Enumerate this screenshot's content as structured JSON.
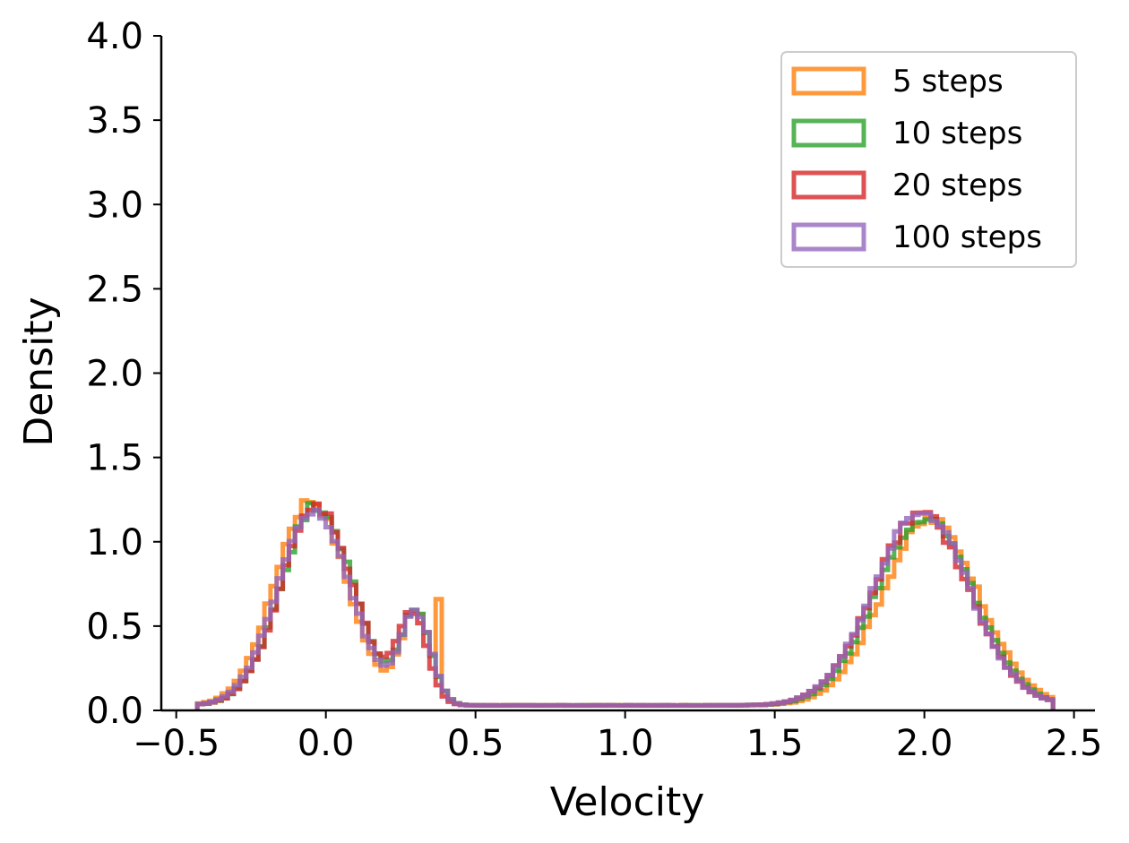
{
  "chart_data": {
    "type": "line",
    "subtype": "step-histogram",
    "xlabel": "Velocity",
    "ylabel": "Density",
    "xlim": [
      -0.55,
      2.57
    ],
    "ylim": [
      0,
      4.0
    ],
    "xticks": [
      -0.5,
      0.0,
      0.5,
      1.0,
      1.5,
      2.0,
      2.5
    ],
    "xtick_labels": [
      "−0.5",
      "0.0",
      "0.5",
      "1.0",
      "1.5",
      "2.0",
      "2.5"
    ],
    "yticks": [
      0.0,
      0.5,
      1.0,
      1.5,
      2.0,
      2.5,
      3.0,
      3.5,
      4.0
    ],
    "ytick_labels": [
      "0.0",
      "0.5",
      "1.0",
      "1.5",
      "2.0",
      "2.5",
      "3.0",
      "3.5",
      "4.0"
    ],
    "legend_position": "top-right",
    "grid": false,
    "bin_range": [
      -0.43,
      2.43
    ],
    "series": [
      {
        "name": "5 steps",
        "color": "#ff7f0e",
        "peaks": [
          {
            "center": -0.05,
            "height": 1.22,
            "width": 0.12
          },
          {
            "center": 0.3,
            "height": 0.55,
            "width": 0.05
          },
          {
            "center": 2.02,
            "height": 1.1,
            "width": 0.16
          }
        ],
        "spike": {
          "x": 0.37,
          "height": 0.66
        }
      },
      {
        "name": "10 steps",
        "color": "#2ca02c",
        "peaks": [
          {
            "center": -0.03,
            "height": 1.19,
            "width": 0.12
          },
          {
            "center": 0.3,
            "height": 0.54,
            "width": 0.05
          },
          {
            "center": 2.0,
            "height": 1.12,
            "width": 0.16
          }
        ]
      },
      {
        "name": "20 steps",
        "color": "#d62728",
        "peaks": [
          {
            "center": -0.03,
            "height": 1.18,
            "width": 0.12
          },
          {
            "center": 0.29,
            "height": 0.52,
            "width": 0.05
          },
          {
            "center": 1.99,
            "height": 1.13,
            "width": 0.16
          }
        ]
      },
      {
        "name": "100 steps",
        "color": "#9467bd",
        "peaks": [
          {
            "center": -0.04,
            "height": 1.17,
            "width": 0.12
          },
          {
            "center": 0.3,
            "height": 0.55,
            "width": 0.05
          },
          {
            "center": 1.99,
            "height": 1.15,
            "width": 0.16
          }
        ]
      }
    ]
  }
}
